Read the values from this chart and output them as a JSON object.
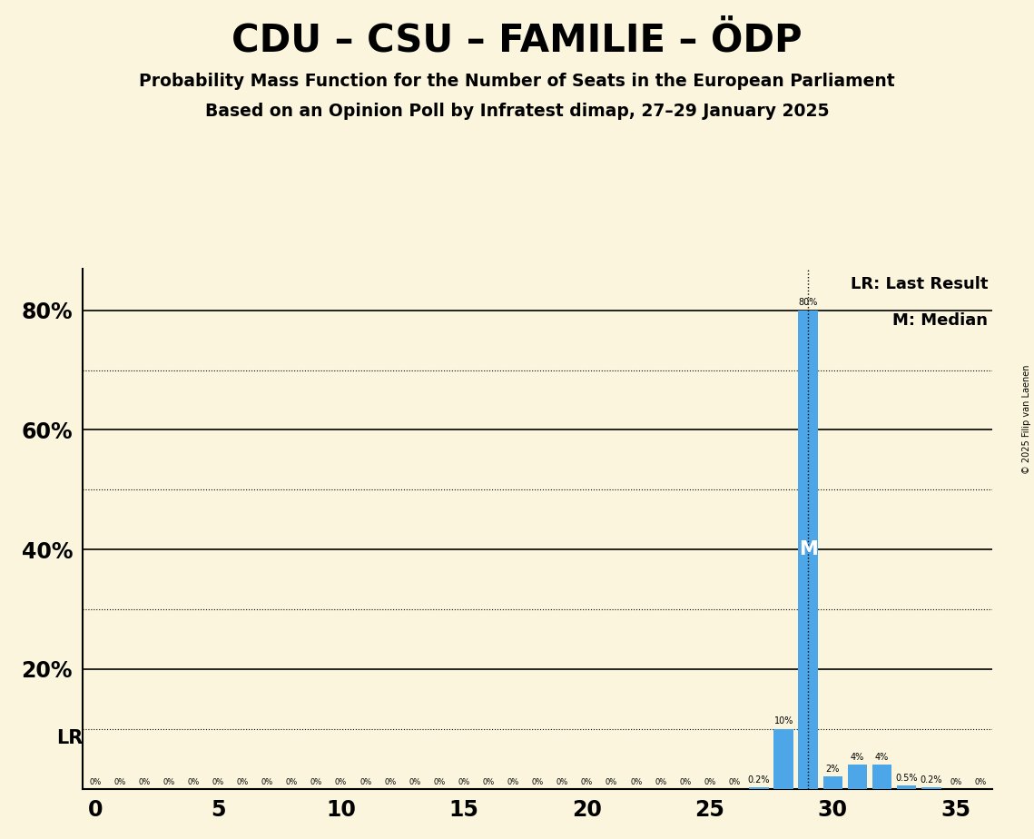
{
  "title": "CDU – CSU – FAMILIE – ÖDP",
  "subtitle1": "Probability Mass Function for the Number of Seats in the European Parliament",
  "subtitle2": "Based on an Opinion Poll by Infratest dimap, 27–29 January 2025",
  "copyright": "© 2025 Filip van Laenen",
  "seats": [
    0,
    1,
    2,
    3,
    4,
    5,
    6,
    7,
    8,
    9,
    10,
    11,
    12,
    13,
    14,
    15,
    16,
    17,
    18,
    19,
    20,
    21,
    22,
    23,
    24,
    25,
    26,
    27,
    28,
    29,
    30,
    31,
    32,
    33,
    34,
    35,
    36
  ],
  "probabilities": [
    0,
    0,
    0,
    0,
    0,
    0,
    0,
    0,
    0,
    0,
    0,
    0,
    0,
    0,
    0,
    0,
    0,
    0,
    0,
    0,
    0,
    0,
    0,
    0,
    0,
    0,
    0,
    0.2,
    10,
    80,
    2,
    4,
    4,
    0.5,
    0.2,
    0,
    0
  ],
  "last_result": 29,
  "median": 29,
  "bar_color": "#4DA6E8",
  "background_color": "#FAF5DC",
  "xlim": [
    -0.5,
    36.5
  ],
  "ylim": [
    0,
    87
  ],
  "solid_gridlines": [
    0,
    20,
    40,
    60,
    80
  ],
  "dotted_gridlines": [
    10,
    30,
    50,
    70
  ],
  "lr_dotted_y": 8.5
}
